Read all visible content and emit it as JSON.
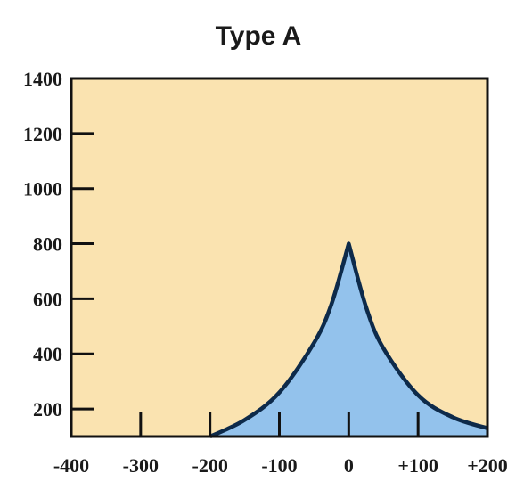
{
  "chart_data": {
    "type": "area",
    "title": "Type A",
    "xlabel": "",
    "ylabel": "",
    "xlim": [
      -400,
      200
    ],
    "ylim": [
      100,
      1400
    ],
    "x_ticks": [
      -400,
      -300,
      -200,
      -100,
      0,
      100,
      200
    ],
    "x_tick_labels": [
      "-400",
      "-300",
      "-200",
      "-100",
      "0",
      "+100",
      "+200"
    ],
    "y_ticks": [
      200,
      400,
      600,
      800,
      1000,
      1200,
      1400
    ],
    "y_tick_labels": [
      "200",
      "400",
      "600",
      "800",
      "1000",
      "1200",
      "1400"
    ],
    "grid": false,
    "legend": "none",
    "series": [
      {
        "x": [
          -200,
          -150,
          -100,
          -50,
          -25,
          0,
          25,
          50,
          100,
          150,
          200
        ],
        "y": [
          100,
          160,
          260,
          440,
          580,
          800,
          570,
          420,
          250,
          170,
          130
        ]
      }
    ],
    "colors": {
      "background": "#fae3b0",
      "fill": "#93c2ec",
      "line": "#0d2a4a",
      "axis": "#111111"
    }
  }
}
